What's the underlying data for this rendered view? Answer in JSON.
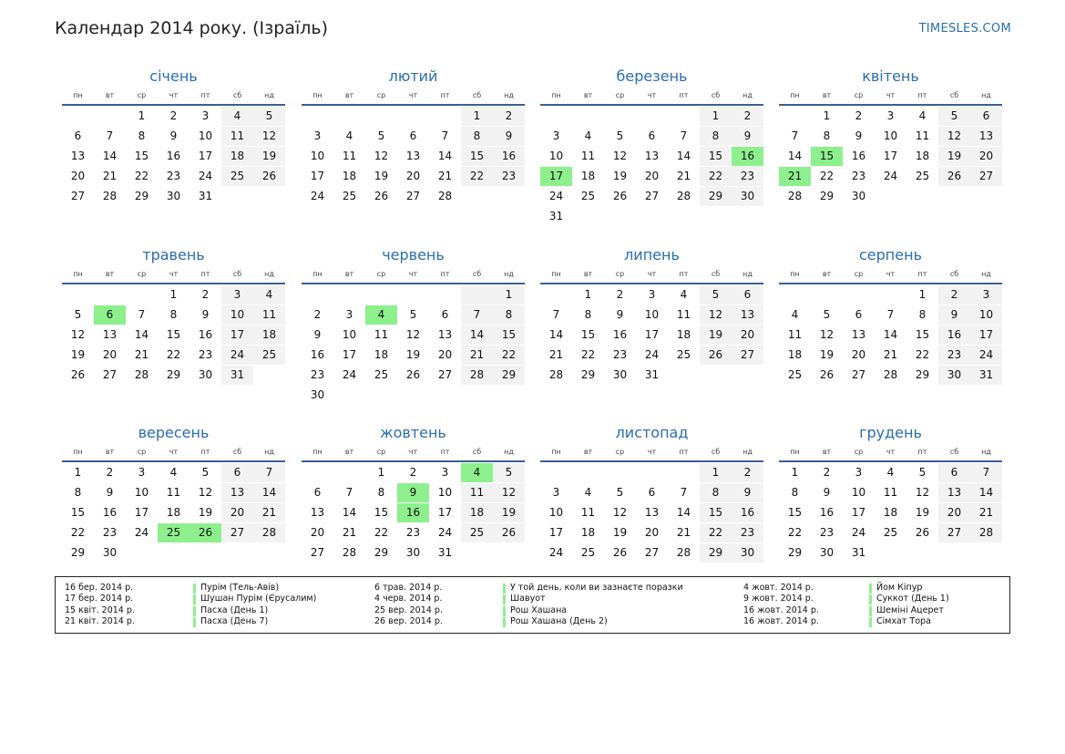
{
  "header": {
    "title": "Календар 2014 року. (Ізраїль)",
    "site": "TIMESLES.COM"
  },
  "weekdays": [
    "пн",
    "вт",
    "ср",
    "чт",
    "пт",
    "сб",
    "нд"
  ],
  "months": [
    {
      "name": "січень",
      "offset": 2,
      "days": 31,
      "holidays": []
    },
    {
      "name": "лютий",
      "offset": 5,
      "days": 28,
      "holidays": []
    },
    {
      "name": "березень",
      "offset": 5,
      "days": 31,
      "holidays": [
        16,
        17
      ]
    },
    {
      "name": "квітень",
      "offset": 1,
      "days": 30,
      "holidays": [
        15,
        21
      ]
    },
    {
      "name": "травень",
      "offset": 3,
      "days": 31,
      "holidays": [
        6
      ]
    },
    {
      "name": "червень",
      "offset": 6,
      "days": 30,
      "holidays": [
        4
      ]
    },
    {
      "name": "липень",
      "offset": 1,
      "days": 31,
      "holidays": []
    },
    {
      "name": "серпень",
      "offset": 4,
      "days": 31,
      "holidays": []
    },
    {
      "name": "вересень",
      "offset": 0,
      "days": 30,
      "holidays": [
        25,
        26
      ]
    },
    {
      "name": "жовтень",
      "offset": 2,
      "days": 31,
      "holidays": [
        4,
        9,
        16
      ]
    },
    {
      "name": "листопад",
      "offset": 5,
      "days": 30,
      "holidays": []
    },
    {
      "name": "грудень",
      "offset": 0,
      "days": 31,
      "holidays": []
    }
  ],
  "legend": [
    {
      "date": "16 бер. 2014 р.",
      "name": "Пурім (Тель-Авів)"
    },
    {
      "date": "17 бер. 2014 р.",
      "name": "Шушан Пурім (Єрусалим)"
    },
    {
      "date": "15 квіт. 2014 р.",
      "name": "Пасха (День 1)"
    },
    {
      "date": "21 квіт. 2014 р.",
      "name": "Пасха (День 7)"
    },
    {
      "date": "6 трав. 2014 р.",
      "name": "У той день, коли ви зазнаєте поразки"
    },
    {
      "date": "4 черв. 2014 р.",
      "name": "Шавуот"
    },
    {
      "date": "25 вер. 2014 р.",
      "name": "Рош Хашана"
    },
    {
      "date": "26 вер. 2014 р.",
      "name": "Рош Хашана (День 2)"
    },
    {
      "date": "4 жовт. 2014 р.",
      "name": "Йом Кіпур"
    },
    {
      "date": "9 жовт. 2014 р.",
      "name": "Суккот (День 1)"
    },
    {
      "date": "16 жовт. 2014 р.",
      "name": "Шеміні Ацерет"
    },
    {
      "date": "16 жовт. 2014 р.",
      "name": "Сімхат Тора"
    }
  ]
}
